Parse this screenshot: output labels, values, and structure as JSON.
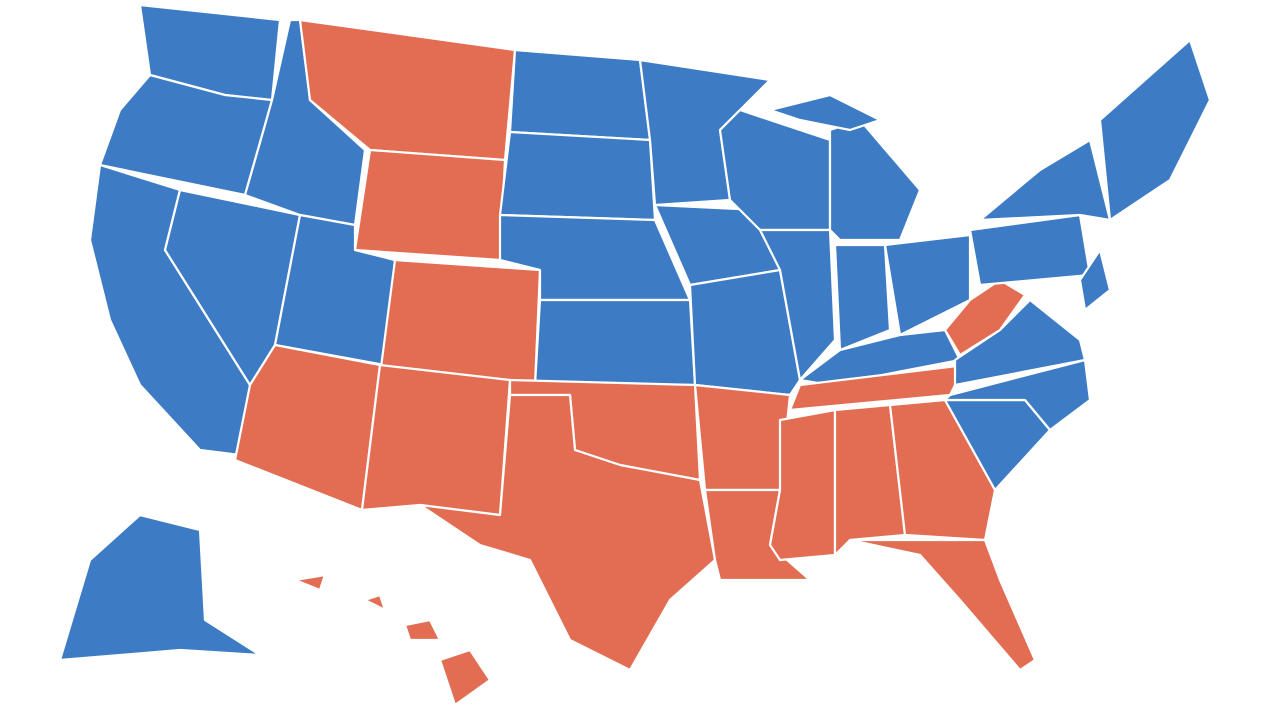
{
  "map": {
    "colors": {
      "blue": "#3d7cc4",
      "red": "#e36d52"
    }
  }
}
